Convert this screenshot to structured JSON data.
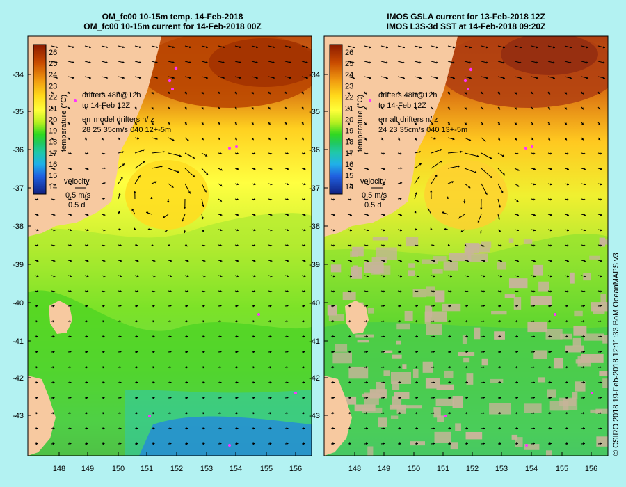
{
  "panels": [
    {
      "id": "model",
      "title_line1": "OM_fc00 10-15m temp. 14-Feb-2018",
      "title_line2": "OM_fc00 10-15m current for 14-Feb-2018 00Z",
      "drifters_line1": "drifters 48h@12h",
      "drifters_line2": "to 14-Feb 12Z",
      "err_line1": "err model drifters n/ z",
      "err_line2": "28 25 35cm/s 040 12+-5m",
      "velocity_label": "velocity",
      "velocity_scale": "0.5 m/s",
      "velocity_time": "0.5 d"
    },
    {
      "id": "observed",
      "title_line1": "IMOS GSLA current for 13-Feb-2018 12Z",
      "title_line2": "IMOS L3S-3d SST at 14-Feb-2018 09:20Z",
      "drifters_line1": "drifters 48h@12h",
      "drifters_line2": "to 14-Feb 12Z",
      "err_line1": "err alt drifters n/ z",
      "err_line2": "24 23 35cm/s 040 13+-5m",
      "velocity_label": "velocity",
      "velocity_scale": "0.5 m/s",
      "velocity_time": "0.5 d"
    }
  ],
  "colorbar": {
    "label": "temperature (°C)",
    "ticks": [
      "26",
      "25",
      "24",
      "23",
      "22",
      "21",
      "20",
      "19",
      "18",
      "17",
      "16",
      "15",
      "14"
    ]
  },
  "axes": {
    "lat_ticks": [
      "-34",
      "-35",
      "-36",
      "-37",
      "-38",
      "-39",
      "-40",
      "-41",
      "-42",
      "-43"
    ],
    "lon_ticks": [
      "148",
      "149",
      "150",
      "151",
      "152",
      "153",
      "154",
      "155",
      "156"
    ]
  },
  "credit": "© CSIRO 2018   19-Feb-2018 12:11:33 BoM OceanMAPS v3",
  "colors": {
    "land": "#f7c9a0",
    "background": "#b3f2f2",
    "drifter": "#ff33ff",
    "missing_data": "#c8b49a"
  }
}
